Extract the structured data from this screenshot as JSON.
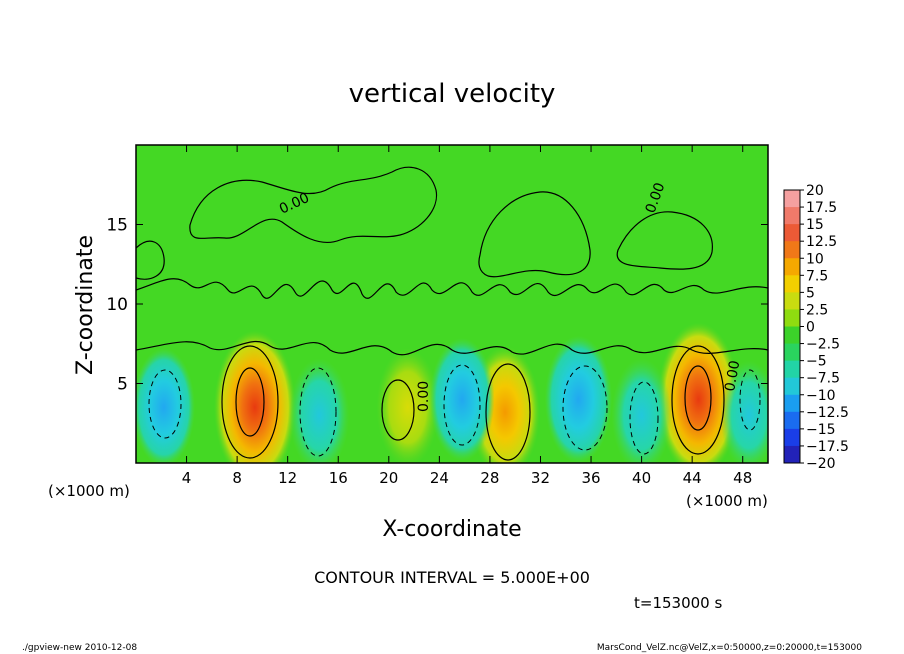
{
  "chart_data": {
    "type": "heatmap",
    "title": "vertical velocity",
    "xlabel": "X-coordinate",
    "ylabel": "Z-coordinate",
    "xlim": [
      0,
      50000
    ],
    "ylim": [
      0,
      20000
    ],
    "x_unit_left": "(×1000 m)",
    "x_unit_right": "(×1000 m)",
    "x_ticks": [
      {
        "value": 4,
        "label": "4"
      },
      {
        "value": 8,
        "label": "8"
      },
      {
        "value": 12,
        "label": "12"
      },
      {
        "value": 16,
        "label": "16"
      },
      {
        "value": 20,
        "label": "20"
      },
      {
        "value": 24,
        "label": "24"
      },
      {
        "value": 28,
        "label": "28"
      },
      {
        "value": 32,
        "label": "32"
      },
      {
        "value": 36,
        "label": "36"
      },
      {
        "value": 40,
        "label": "40"
      },
      {
        "value": 44,
        "label": "44"
      },
      {
        "value": 48,
        "label": "48"
      }
    ],
    "y_ticks": [
      {
        "value": 5,
        "label": "5"
      },
      {
        "value": 10,
        "label": "10"
      },
      {
        "value": 15,
        "label": "15"
      }
    ],
    "colorbar": {
      "levels": [
        "20",
        "17.5",
        "15",
        "12.5",
        "10",
        "7.5",
        "5",
        "2.5",
        "0",
        "−2.5",
        "−5",
        "−7.5",
        "−10",
        "−12.5",
        "−15",
        "−17.5",
        "−20"
      ],
      "colors": [
        "#f5a0a0",
        "#f07a6a",
        "#ec5a36",
        "#f07818",
        "#f5a800",
        "#f2cf00",
        "#c9dc10",
        "#8fdc10",
        "#3cd22a",
        "#2ad45e",
        "#22d4a6",
        "#22c8d8",
        "#1a9ef0",
        "#1a6cf0",
        "#1a3ee8",
        "#2222b8",
        "#6a1ab0"
      ]
    },
    "contour_labels": [
      "0.00",
      "0.00",
      "0.00",
      "0.00",
      "0.00"
    ],
    "contour_interval_text": "CONTOUR INTERVAL = 5.000E+00",
    "time_text": "t=153000 s",
    "cells": [
      {
        "x": 9.4,
        "z": 3.5,
        "value": 14
      },
      {
        "x": 29.2,
        "z": 3.2,
        "value": 9
      },
      {
        "x": 44.5,
        "z": 4.0,
        "value": 14
      },
      {
        "x": 21.5,
        "z": 3.5,
        "value": 6
      },
      {
        "x": 25.8,
        "z": 4.0,
        "value": -7
      },
      {
        "x": 35.0,
        "z": 4.0,
        "value": -8
      },
      {
        "x": 2.2,
        "z": 3.5,
        "value": -6
      },
      {
        "x": 14.5,
        "z": 3.0,
        "value": -5
      },
      {
        "x": 40.0,
        "z": 3.0,
        "value": -5
      },
      {
        "x": 48.5,
        "z": 3.0,
        "value": -4
      }
    ]
  },
  "footer": {
    "left": "./gpview-new  2010-12-08",
    "right": "MarsCond_VelZ.nc@VelZ,x=0:50000,z=0:20000,t=153000"
  }
}
